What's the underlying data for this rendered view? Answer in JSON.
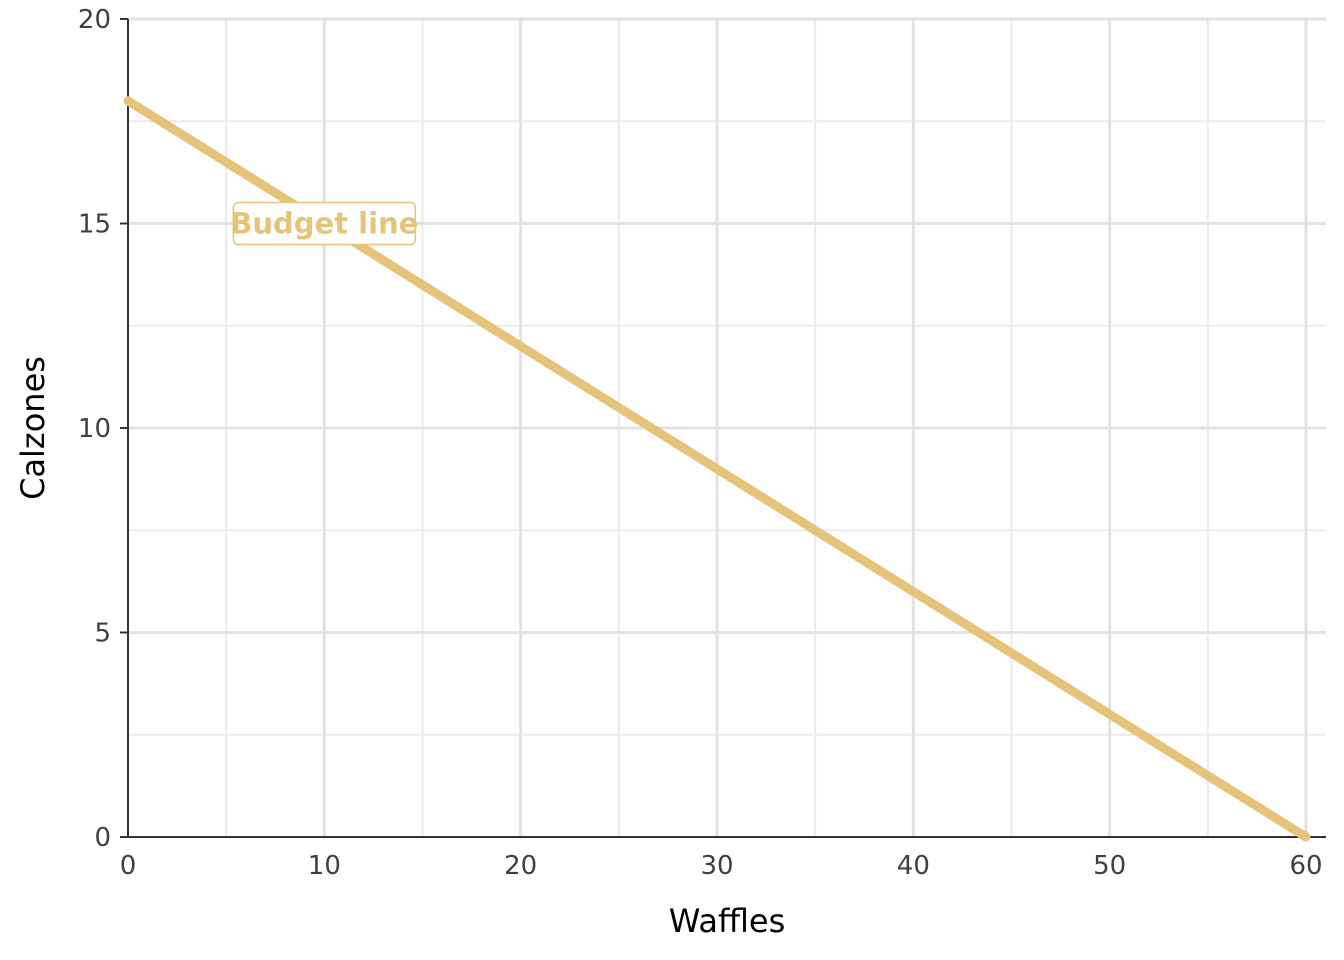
{
  "chart_data": {
    "type": "line",
    "title": "",
    "xlabel": "Waffles",
    "ylabel": "Calzones",
    "xlim": [
      0,
      60
    ],
    "ylim": [
      0,
      20
    ],
    "x_ticks": [
      0,
      10,
      20,
      30,
      40,
      50,
      60
    ],
    "y_ticks": [
      0,
      5,
      10,
      15,
      20
    ],
    "x_minor_step": 5,
    "y_minor_step": 2.5,
    "grid": true,
    "legend": "none",
    "series": [
      {
        "name": "Budget line",
        "color": "#E6C37A",
        "x": [
          0,
          60
        ],
        "y": [
          18,
          0
        ]
      }
    ],
    "annotations": [
      {
        "text": "Budget line",
        "x": 10,
        "y": 15,
        "color": "#E6C37A"
      }
    ]
  }
}
